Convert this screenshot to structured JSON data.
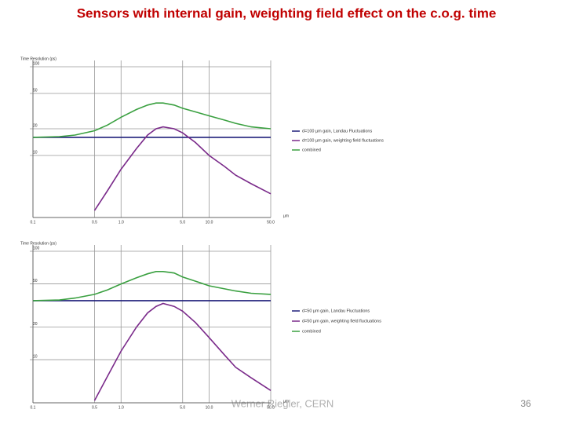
{
  "title": "Sensors with internal gain, weighting field effect on the c.o.g. time",
  "footer": "Werner Riegler, CERN",
  "page_number": "36",
  "chart_data": [
    {
      "type": "line",
      "ylabel": "Time Resolution (ps)",
      "xlabel": "µm",
      "xscale": "log",
      "yscale": "log",
      "grid": true,
      "xlim": [
        0.1,
        50
      ],
      "ylim": [
        2,
        100
      ],
      "xticks": [
        0.1,
        0.5,
        {
          "value": 1,
          "label": "1.0"
        },
        {
          "value": 5,
          "label": "5.0"
        },
        {
          "value": 10,
          "label": "10.0"
        },
        {
          "value": 50,
          "label": "50.0"
        }
      ],
      "yticks": [
        10,
        20,
        50,
        100
      ],
      "x": [
        0.1,
        0.2,
        0.3,
        0.5,
        0.7,
        1,
        1.5,
        2,
        2.5,
        3,
        4,
        5,
        7,
        10,
        15,
        20,
        30,
        50
      ],
      "series": [
        {
          "name": "d=100 µm gain, Landau Fluctuations",
          "color": "#1f1f7a",
          "values": [
            16,
            16,
            16,
            16,
            16,
            16,
            16,
            16,
            16,
            16,
            16,
            16,
            16,
            16,
            16,
            16,
            16,
            16
          ]
        },
        {
          "name": "d=100 µm gain, weighting field fluctuations",
          "color": "#7a2a8a",
          "values": [
            null,
            null,
            null,
            2.4,
            4,
            7,
            12,
            17,
            20,
            21,
            20,
            18,
            14,
            10,
            7.5,
            6,
            4.8,
            3.7
          ]
        },
        {
          "name": "combined",
          "color": "#3aa040",
          "values": [
            16,
            16.3,
            17,
            19,
            22,
            27,
            33,
            37,
            39,
            39,
            37,
            34,
            31,
            28,
            25,
            23,
            21,
            20
          ]
        }
      ]
    },
    {
      "type": "line",
      "ylabel": "Time Resolution (ps)",
      "xlabel": "µm",
      "xscale": "log",
      "yscale": "log",
      "grid": true,
      "xlim": [
        0.1,
        50
      ],
      "ylim": [
        4,
        100
      ],
      "xticks": [
        0.1,
        0.5,
        {
          "value": 1,
          "label": "1.0"
        },
        {
          "value": 5,
          "label": "5.0"
        },
        {
          "value": 10,
          "label": "10.0"
        },
        {
          "value": 50,
          "label": "50.0"
        }
      ],
      "yticks": [
        10,
        20,
        50,
        100
      ],
      "x": [
        0.1,
        0.2,
        0.3,
        0.5,
        0.7,
        1,
        1.5,
        2,
        2.5,
        3,
        4,
        5,
        7,
        10,
        15,
        20,
        30,
        50
      ],
      "series": [
        {
          "name": "d=50 µm gain, Landau Fluctuations",
          "color": "#1f1f7a",
          "values": [
            35,
            35,
            35,
            35,
            35,
            35,
            35,
            35,
            35,
            35,
            35,
            35,
            35,
            35,
            35,
            35,
            35,
            35
          ]
        },
        {
          "name": "d=50 µm gain, weighting field fluctuations",
          "color": "#7a2a8a",
          "values": [
            null,
            null,
            null,
            4.2,
            7,
            12,
            20,
            27,
            31,
            33,
            31,
            28,
            22,
            16,
            11,
            8.5,
            6.8,
            5.2
          ]
        },
        {
          "name": "combined",
          "color": "#3aa040",
          "values": [
            35,
            35.5,
            37,
            40,
            44,
            50,
            57,
            62,
            65,
            65,
            63,
            58,
            53,
            48,
            45,
            43,
            41,
            40
          ]
        }
      ]
    }
  ]
}
